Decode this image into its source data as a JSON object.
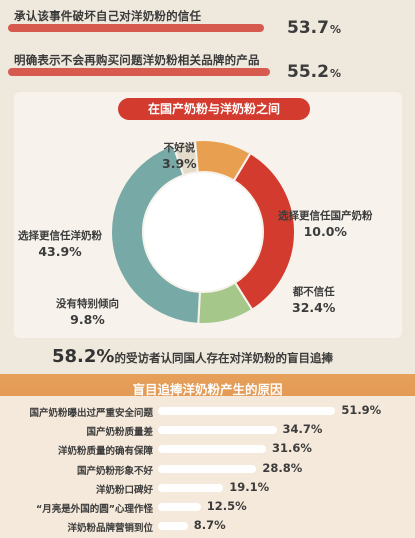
{
  "top_stats": [
    {
      "label": "承认该事件破坏自己对洋奶粉的信任",
      "value": "53.7",
      "unit": "%",
      "fraction": 0.537
    },
    {
      "label": "明确表示不会再购买问题洋奶粉相关品牌的产品",
      "value": "55.2",
      "unit": "%",
      "fraction": 0.552
    }
  ],
  "donut_title": "在国产奶粉与洋奶粉之间",
  "headline": {
    "value": "58.2%",
    "text": "的受访者认同国人存在对洋奶粉的盲目追捧"
  },
  "reasons_title": "盲目追捧洋奶粉产生的原因",
  "colors": {
    "accent_red": "#d23b2e",
    "bar_red": "#d75a4e",
    "orange": "#e8a050",
    "teal": "#77aaa6",
    "green": "#a5c88a",
    "beige": "#e4dccb"
  },
  "chart_data": [
    {
      "type": "pie",
      "title": "在国产奶粉与洋奶粉之间",
      "labels": [
        "不好说",
        "选择更信任国产奶粉",
        "都不信任",
        "没有特别倾向",
        "选择更信任洋奶粉"
      ],
      "values": [
        3.9,
        10.0,
        32.4,
        9.8,
        43.9
      ],
      "value_labels": [
        "3.9%",
        "10.0%",
        "32.4%",
        "9.8%",
        "43.9%"
      ],
      "colors": [
        "#e4dccb",
        "#e8a050",
        "#d23b2e",
        "#a5c88a",
        "#77aaa6"
      ]
    },
    {
      "type": "bar",
      "orientation": "horizontal",
      "title": "盲目追捧洋奶粉产生的原因",
      "categories": [
        "国产奶粉曝出过严重安全问题",
        "国产奶粉质量差",
        "洋奶粉质量的确有保障",
        "国产奶粉形象不好",
        "洋奶粉口碑好",
        "“月亮是外国的圆”心理作怪",
        "洋奶粉品牌营销到位"
      ],
      "values": [
        51.9,
        34.7,
        31.6,
        28.8,
        19.1,
        12.5,
        8.7
      ],
      "value_labels": [
        "51.9%",
        "34.7%",
        "31.6%",
        "28.8%",
        "19.1%",
        "12.5%",
        "8.7%"
      ],
      "xlim": [
        0,
        60
      ]
    }
  ]
}
